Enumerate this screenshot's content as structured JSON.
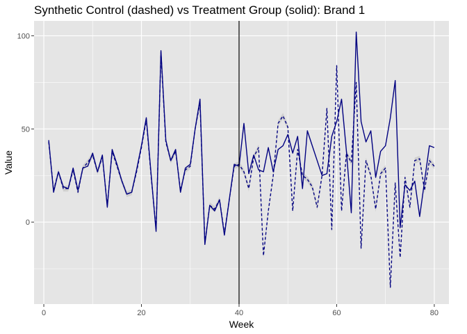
{
  "chart_data": {
    "type": "line",
    "title": "Synthetic Control (dashed) vs Treatment Group (solid): Brand 1",
    "xlabel": "Week",
    "ylabel": "Value",
    "xlim": [
      -2,
      83
    ],
    "ylim": [
      -44,
      108
    ],
    "x_ticks": [
      0,
      20,
      40,
      60,
      80
    ],
    "x_tick_labels": [
      "0",
      "20",
      "40",
      "60",
      "80"
    ],
    "y_ticks": [
      0,
      50,
      100
    ],
    "y_tick_labels": [
      "0",
      "50",
      "100"
    ],
    "vline_x": 40,
    "grid": true,
    "legend": "none",
    "colors": {
      "panel": "#e5e5e5",
      "grid": "#ffffff",
      "series": "#000080",
      "band": "#bdbdbd",
      "vline": "#000000"
    },
    "x": [
      1,
      2,
      3,
      4,
      5,
      6,
      7,
      8,
      9,
      10,
      11,
      12,
      13,
      14,
      15,
      16,
      17,
      18,
      19,
      20,
      21,
      22,
      23,
      24,
      25,
      26,
      27,
      28,
      29,
      30,
      31,
      32,
      33,
      34,
      35,
      36,
      37,
      38,
      39,
      40,
      41,
      42,
      43,
      44,
      45,
      46,
      47,
      48,
      49,
      50,
      51,
      52,
      53,
      54,
      55,
      56,
      57,
      58,
      59,
      60,
      61,
      62,
      63,
      64,
      65,
      66,
      67,
      68,
      69,
      70,
      71,
      72,
      73,
      74,
      75,
      76,
      77,
      78,
      79,
      80
    ],
    "series": [
      {
        "style": "solid",
        "values": [
          44,
          16,
          27,
          19,
          18,
          29,
          17,
          29,
          30,
          37,
          27,
          36,
          8,
          39,
          31,
          22,
          15,
          16,
          28,
          41,
          56,
          25,
          -5,
          92,
          44,
          33,
          39,
          16,
          29,
          31,
          50,
          66,
          -12,
          9,
          6,
          12,
          -7,
          12,
          31,
          30,
          53,
          26,
          36,
          28,
          27,
          40,
          27,
          39,
          41,
          47,
          37,
          46,
          18,
          49,
          41,
          33,
          25,
          26,
          46,
          54,
          66,
          38,
          5,
          102,
          54,
          43,
          49,
          24,
          38,
          41,
          56,
          76,
          -3,
          20,
          17,
          22,
          3,
          22,
          41,
          40
        ]
      },
      {
        "style": "dashed",
        "values": [
          43,
          17,
          27,
          18,
          18,
          28,
          16,
          29,
          32,
          36,
          27,
          35,
          9,
          38,
          30,
          22,
          15,
          16,
          27,
          40,
          55,
          24,
          -4,
          91,
          43,
          33,
          38,
          17,
          28,
          30,
          50,
          64,
          -11,
          9,
          7,
          12,
          -6,
          12,
          30,
          31,
          27,
          18,
          35,
          40,
          -18,
          6,
          25,
          53,
          57,
          51,
          6,
          39,
          25,
          23,
          19,
          8,
          25,
          61,
          -4,
          84,
          6,
          37,
          32,
          75,
          -14,
          33,
          25,
          7,
          26,
          29,
          -35,
          21,
          -19,
          24,
          8,
          33,
          34,
          17,
          33,
          30
        ]
      }
    ]
  }
}
